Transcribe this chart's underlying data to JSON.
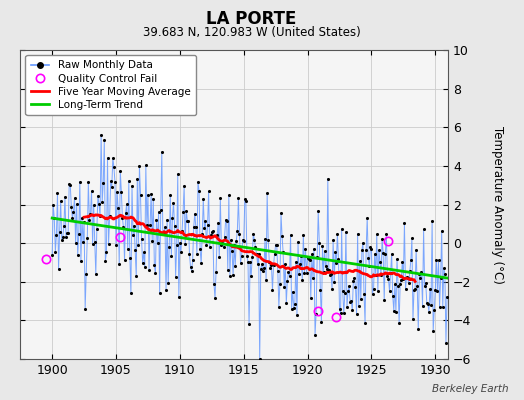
{
  "title": "LA PORTE",
  "subtitle": "39.683 N, 120.983 W (United States)",
  "ylabel": "Temperature Anomaly (°C)",
  "xlim": [
    1897.5,
    1931
  ],
  "ylim": [
    -6,
    10
  ],
  "yticks": [
    -6,
    -4,
    -2,
    0,
    2,
    4,
    6,
    8,
    10
  ],
  "xticks": [
    1900,
    1905,
    1910,
    1915,
    1920,
    1925,
    1930
  ],
  "background_color": "#e8e8e8",
  "plot_bg_color": "#f5f5f5",
  "watermark": "Berkeley Earth",
  "raw_color": "#6699ff",
  "dot_color": "#000000",
  "ma_color": "#ff0000",
  "trend_color": "#00cc00",
  "qc_color": "#ff00ff",
  "seed": 123
}
